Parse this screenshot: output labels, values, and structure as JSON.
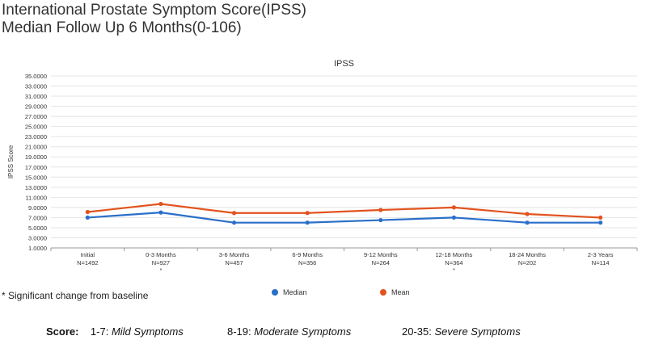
{
  "title": {
    "line1": "International Prostate Symptom Score(IPSS)",
    "line2": "Median Follow Up 6 Months(0-106)"
  },
  "footnote": "* Significant change from baseline",
  "scores": {
    "label": "Score:",
    "items": [
      {
        "range": "1-7:",
        "desc": "Mild Symptoms"
      },
      {
        "range": "8-19:",
        "desc": "Moderate Symptoms"
      },
      {
        "range": "20-35:",
        "desc": "Severe Symptoms"
      }
    ]
  },
  "colors": {
    "median": "#2a6fc9",
    "mean": "#e2531e",
    "grid": "#e4e4e4",
    "axis": "#9a9a9a"
  },
  "chart_data": {
    "type": "line",
    "title": "IPSS",
    "ylabel": "IPSS Score",
    "xlabel": "",
    "ylim": [
      1,
      35
    ],
    "yticks": [
      "1.0000",
      "3.0000",
      "5.0000",
      "7.0000",
      "9.0000",
      "11.0000",
      "13.0000",
      "15.0000",
      "17.0000",
      "19.0000",
      "21.0000",
      "23.0000",
      "25.0000",
      "27.0000",
      "29.0000",
      "31.0000",
      "33.0000",
      "35.0000"
    ],
    "categories": [
      {
        "label": "Initial",
        "n": "N=1492",
        "mark": ""
      },
      {
        "label": "0-3 Months",
        "n": "N=927",
        "mark": "*"
      },
      {
        "label": "3-6 Months",
        "n": "N=457",
        "mark": ""
      },
      {
        "label": "6-9 Months",
        "n": "N=356",
        "mark": ""
      },
      {
        "label": "9-12 Months",
        "n": "N=264",
        "mark": ""
      },
      {
        "label": "12-18 Months",
        "n": "N=364",
        "mark": "*"
      },
      {
        "label": "18-24 Months",
        "n": "N=202",
        "mark": ""
      },
      {
        "label": "2-3 Years",
        "n": "N=114",
        "mark": ""
      }
    ],
    "series": [
      {
        "name": "Median",
        "values": [
          7.0,
          8.0,
          6.0,
          6.0,
          6.5,
          7.0,
          6.0,
          6.0
        ]
      },
      {
        "name": "Mean",
        "values": [
          8.1,
          9.7,
          7.9,
          7.9,
          8.5,
          9.0,
          7.7,
          7.0
        ]
      }
    ],
    "legend": "bottom-center"
  }
}
